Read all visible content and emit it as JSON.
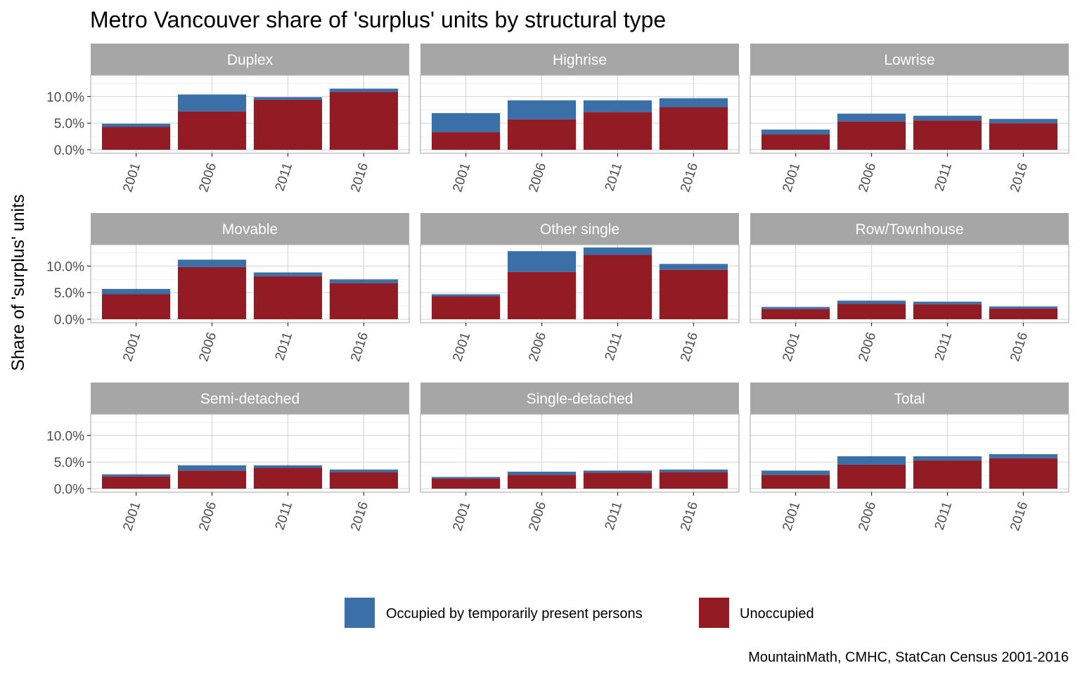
{
  "chart_data": {
    "type": "bar",
    "stacked": true,
    "title": "Metro Vancouver share of 'surplus' units by structural type",
    "ylabel": "Share of 'surplus' units",
    "xlabel": "",
    "caption": "MountainMath, CMHC, StatCan Census 2001-2016",
    "categories": [
      "2001",
      "2006",
      "2011",
      "2016"
    ],
    "ylim": [
      0,
      0.13
    ],
    "y_ticks": [
      0,
      0.05,
      0.1
    ],
    "y_tick_labels": [
      "0.0%",
      "5.0%",
      "10.0%"
    ],
    "grid": true,
    "legend_position": "bottom",
    "colors": {
      "Occupied by temporarily present persons": "#3a6fa8",
      "Unoccupied": "#921b24",
      "strip": "#a6a6a6"
    },
    "legend": [
      "Occupied by temporarily present persons",
      "Unoccupied"
    ],
    "facets": [
      {
        "name": "Duplex",
        "series": [
          {
            "name": "Unoccupied",
            "values": [
              0.043,
              0.072,
              0.094,
              0.109
            ]
          },
          {
            "name": "Occupied by temporarily present persons",
            "values": [
              0.006,
              0.032,
              0.005,
              0.006
            ]
          }
        ]
      },
      {
        "name": "Highrise",
        "series": [
          {
            "name": "Unoccupied",
            "values": [
              0.033,
              0.057,
              0.071,
              0.08
            ]
          },
          {
            "name": "Occupied by temporarily present persons",
            "values": [
              0.036,
              0.036,
              0.022,
              0.017
            ]
          }
        ]
      },
      {
        "name": "Lowrise",
        "series": [
          {
            "name": "Unoccupied",
            "values": [
              0.029,
              0.053,
              0.055,
              0.05
            ]
          },
          {
            "name": "Occupied by temporarily present persons",
            "values": [
              0.009,
              0.015,
              0.009,
              0.008
            ]
          }
        ]
      },
      {
        "name": "Movable",
        "series": [
          {
            "name": "Unoccupied",
            "values": [
              0.047,
              0.098,
              0.081,
              0.068
            ]
          },
          {
            "name": "Occupied by temporarily present persons",
            "values": [
              0.01,
              0.014,
              0.007,
              0.007
            ]
          }
        ]
      },
      {
        "name": "Other single",
        "series": [
          {
            "name": "Unoccupied",
            "values": [
              0.043,
              0.089,
              0.121,
              0.093
            ]
          },
          {
            "name": "Occupied by temporarily present persons",
            "values": [
              0.004,
              0.039,
              0.014,
              0.011
            ]
          }
        ]
      },
      {
        "name": "Row/Townhouse",
        "series": [
          {
            "name": "Unoccupied",
            "values": [
              0.019,
              0.029,
              0.028,
              0.02
            ]
          },
          {
            "name": "Occupied by temporarily present persons",
            "values": [
              0.004,
              0.006,
              0.005,
              0.004
            ]
          }
        ]
      },
      {
        "name": "Semi-detached",
        "series": [
          {
            "name": "Unoccupied",
            "values": [
              0.023,
              0.034,
              0.039,
              0.031
            ]
          },
          {
            "name": "Occupied by temporarily present persons",
            "values": [
              0.004,
              0.01,
              0.005,
              0.005
            ]
          }
        ]
      },
      {
        "name": "Single-detached",
        "series": [
          {
            "name": "Unoccupied",
            "values": [
              0.019,
              0.026,
              0.03,
              0.031
            ]
          },
          {
            "name": "Occupied by temporarily present persons",
            "values": [
              0.003,
              0.006,
              0.004,
              0.005
            ]
          }
        ]
      },
      {
        "name": "Total",
        "series": [
          {
            "name": "Unoccupied",
            "values": [
              0.026,
              0.045,
              0.053,
              0.057
            ]
          },
          {
            "name": "Occupied by temporarily present persons",
            "values": [
              0.008,
              0.016,
              0.008,
              0.008
            ]
          }
        ]
      }
    ]
  }
}
